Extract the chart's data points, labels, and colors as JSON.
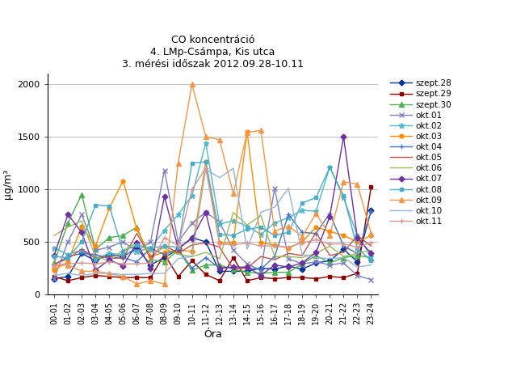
{
  "title_line1": "CO koncentráció",
  "title_line2": "4. LMp-Csámpa, Kis utca",
  "title_line3": "3. mérési időszak 2012.09.28-10.11",
  "xlabel": "Óra",
  "ylabel": "μg/m³",
  "hours": [
    "00-01",
    "01-02",
    "02-03",
    "03-04",
    "04-05",
    "05-06",
    "06-07",
    "07-08",
    "08-09",
    "09-10",
    "10-11",
    "11-12",
    "12-13",
    "13-14",
    "14-15",
    "15-16",
    "16-17",
    "17-18",
    "18-19",
    "19-20",
    "20-21",
    "21-22",
    "22-23",
    "23-24"
  ],
  "series": [
    {
      "label": "szept.28",
      "color": "#003399",
      "marker": "D",
      "markersize": 3.5,
      "linewidth": 1.0,
      "values": [
        150,
        170,
        390,
        320,
        380,
        360,
        440,
        280,
        350,
        430,
        540,
        500,
        220,
        220,
        220,
        250,
        240,
        270,
        240,
        300,
        320,
        430,
        310,
        800
      ]
    },
    {
      "label": "szept.29",
      "color": "#8B0000",
      "marker": "s",
      "markersize": 3.5,
      "linewidth": 1.0,
      "values": [
        170,
        130,
        160,
        180,
        170,
        160,
        160,
        160,
        380,
        170,
        320,
        190,
        130,
        350,
        130,
        160,
        150,
        160,
        160,
        150,
        170,
        160,
        200,
        1020
      ]
    },
    {
      "label": "szept.30",
      "color": "#4CAF50",
      "marker": "^",
      "markersize": 4,
      "linewidth": 1.0,
      "values": [
        300,
        680,
        950,
        430,
        540,
        560,
        640,
        330,
        310,
        420,
        230,
        280,
        280,
        240,
        210,
        200,
        210,
        210,
        290,
        370,
        300,
        350,
        370,
        350
      ]
    },
    {
      "label": "okt.01",
      "color": "#8080C0",
      "marker": "x",
      "markersize": 4,
      "linewidth": 1.0,
      "values": [
        150,
        500,
        760,
        420,
        450,
        500,
        410,
        500,
        1180,
        500,
        680,
        780,
        690,
        420,
        290,
        230,
        1010,
        340,
        290,
        310,
        280,
        300,
        180,
        140
      ]
    },
    {
      "label": "okt.02",
      "color": "#4DB8CC",
      "marker": "*",
      "markersize": 5,
      "linewidth": 1.0,
      "values": [
        440,
        380,
        420,
        340,
        390,
        380,
        410,
        440,
        610,
        760,
        940,
        1440,
        670,
        700,
        650,
        570,
        680,
        730,
        800,
        790,
        1210,
        920,
        560,
        360
      ]
    },
    {
      "label": "okt.03",
      "color": "#FF8C00",
      "marker": "o",
      "markersize": 3.5,
      "linewidth": 1.0,
      "values": [
        230,
        310,
        650,
        460,
        820,
        1080,
        620,
        360,
        400,
        420,
        410,
        1260,
        490,
        490,
        1550,
        490,
        470,
        440,
        500,
        640,
        600,
        560,
        500,
        560
      ]
    },
    {
      "label": "okt.04",
      "color": "#4472C4",
      "marker": "+",
      "markersize": 5,
      "linewidth": 1.0,
      "values": [
        280,
        360,
        390,
        380,
        340,
        350,
        310,
        440,
        380,
        430,
        250,
        350,
        250,
        260,
        250,
        240,
        360,
        760,
        590,
        580,
        770,
        460,
        390,
        790
      ]
    },
    {
      "label": "okt.05",
      "color": "#C0504D",
      "marker": "None",
      "markersize": 3,
      "linewidth": 1.0,
      "values": [
        290,
        340,
        430,
        350,
        360,
        340,
        580,
        350,
        470,
        390,
        470,
        490,
        450,
        240,
        250,
        360,
        330,
        390,
        370,
        590,
        370,
        400,
        560,
        460
      ]
    },
    {
      "label": "okt.06",
      "color": "#9BBB59",
      "marker": "None",
      "markersize": 3,
      "linewidth": 1.0,
      "values": [
        560,
        640,
        700,
        360,
        320,
        420,
        490,
        400,
        440,
        380,
        360,
        400,
        340,
        780,
        660,
        750,
        360,
        360,
        350,
        390,
        460,
        360,
        390,
        420
      ]
    },
    {
      "label": "okt.07",
      "color": "#7030A0",
      "marker": "D",
      "markersize": 3.5,
      "linewidth": 1.0,
      "values": [
        370,
        760,
        590,
        230,
        330,
        270,
        490,
        250,
        930,
        440,
        530,
        780,
        250,
        260,
        260,
        180,
        280,
        260,
        300,
        400,
        740,
        1500,
        540,
        390
      ]
    },
    {
      "label": "okt.08",
      "color": "#4BACC6",
      "marker": "s",
      "markersize": 3.5,
      "linewidth": 1.0,
      "values": [
        360,
        350,
        500,
        850,
        840,
        410,
        470,
        440,
        460,
        450,
        1250,
        1260,
        570,
        560,
        620,
        640,
        560,
        590,
        870,
        920,
        1210,
        940,
        440,
        320
      ]
    },
    {
      "label": "okt.09",
      "color": "#F79646",
      "marker": "^",
      "markersize": 4,
      "linewidth": 1.0,
      "values": [
        270,
        280,
        220,
        220,
        200,
        170,
        100,
        130,
        100,
        1250,
        2000,
        1500,
        1470,
        960,
        1540,
        1560,
        600,
        650,
        550,
        770,
        560,
        1070,
        1050,
        580
      ]
    },
    {
      "label": "okt.10",
      "color": "#95B3D7",
      "marker": "None",
      "markersize": 3,
      "linewidth": 1.0,
      "values": [
        180,
        200,
        180,
        200,
        200,
        190,
        190,
        200,
        200,
        340,
        360,
        1190,
        1110,
        1200,
        430,
        780,
        830,
        1010,
        380,
        350,
        340,
        350,
        260,
        280
      ]
    },
    {
      "label": "okt.11",
      "color": "#D99694",
      "marker": "+",
      "markersize": 5,
      "linewidth": 1.0,
      "values": [
        280,
        290,
        300,
        290,
        310,
        290,
        290,
        300,
        540,
        460,
        1000,
        1200,
        480,
        470,
        490,
        460,
        460,
        450,
        490,
        520,
        480,
        480,
        450,
        490
      ]
    }
  ],
  "ylim": [
    0,
    2100
  ],
  "yticks": [
    0,
    500,
    1000,
    1500,
    2000
  ],
  "background_color": "#FFFFFF",
  "grid_color": "#C0C0C0",
  "figsize": [
    6.5,
    4.55
  ],
  "dpi": 100
}
